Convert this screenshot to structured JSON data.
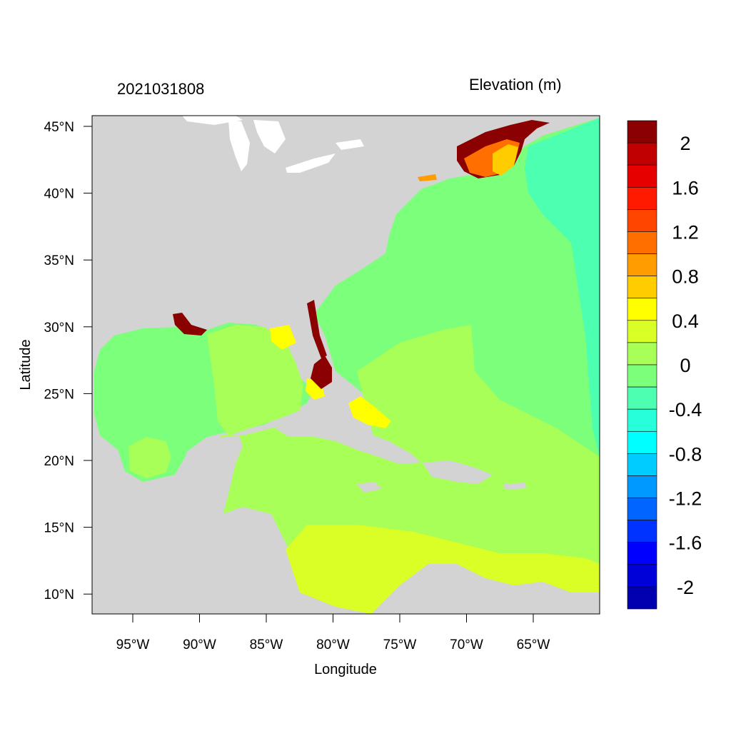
{
  "header": {
    "time_label": "2021031808",
    "variable_label": "Elevation (m)"
  },
  "axes": {
    "xlabel": "Longitude",
    "ylabel": "Latitude",
    "x_ticks": [
      "95°W",
      "90°W",
      "85°W",
      "80°W",
      "75°W",
      "70°W",
      "65°W"
    ],
    "y_ticks": [
      "45°N",
      "40°N",
      "35°N",
      "30°N",
      "25°N",
      "20°N",
      "15°N",
      "10°N"
    ]
  },
  "colorbar": {
    "labels": [
      "2",
      "1.6",
      "1.2",
      "0.8",
      "0.4",
      "0",
      "-0.4",
      "-0.8",
      "-1.2",
      "-1.6",
      "-2"
    ],
    "colors_top_to_bottom": [
      "#8b0000",
      "#c00000",
      "#e60000",
      "#ff1a00",
      "#ff4500",
      "#ff6f00",
      "#ff9d00",
      "#ffcc00",
      "#ffff00",
      "#d9ff26",
      "#a8ff57",
      "#7cff7a",
      "#4dffb0",
      "#26ffd9",
      "#00ffff",
      "#00ccff",
      "#0099ff",
      "#0066ff",
      "#0033ff",
      "#0000ff",
      "#0000d9",
      "#0000b0"
    ]
  },
  "colors": {
    "land": "#d3d3d3",
    "lakes": "#ffffff",
    "elev_neg03": "#4dffb0",
    "elev_0": "#7cff7a",
    "elev_02": "#a8ff57",
    "elev_03": "#d9ff26",
    "elev_05": "#ffff00",
    "elev_08": "#ffcc00",
    "elev_surge_high": "#8b0000"
  }
}
